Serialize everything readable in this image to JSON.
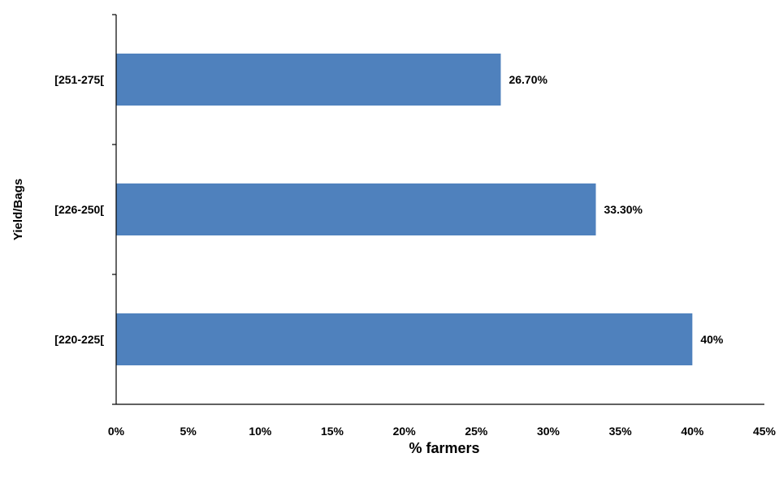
{
  "chart_data": {
    "type": "bar",
    "orientation": "horizontal",
    "title": "",
    "xlabel": "% farmers",
    "ylabel": "Yield/Bags",
    "categories": [
      "[220-225[",
      "[226-250[",
      "[251-275["
    ],
    "values": [
      40,
      33.3,
      26.7
    ],
    "value_labels": [
      "40%",
      "33.30%",
      "26.70%"
    ],
    "xlim": [
      0,
      45
    ],
    "xticks": [
      "0%",
      "5%",
      "10%",
      "15%",
      "20%",
      "25%",
      "30%",
      "35%",
      "40%",
      "45%"
    ],
    "grid": false,
    "legend": "none",
    "bar_color": "#4F81BD"
  }
}
